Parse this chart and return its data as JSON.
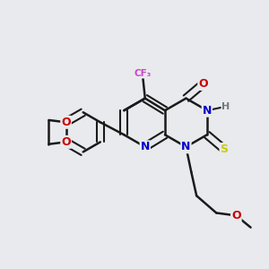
{
  "background_color": "#e8eaed",
  "bond_color": "#1a1a1a",
  "atom_colors": {
    "N": "#0000cc",
    "O": "#cc0000",
    "F": "#cc44cc",
    "S": "#cccc00",
    "H": "#777777",
    "C": "#1a1a1a"
  },
  "figsize": [
    3.0,
    3.0
  ],
  "dpi": 100
}
